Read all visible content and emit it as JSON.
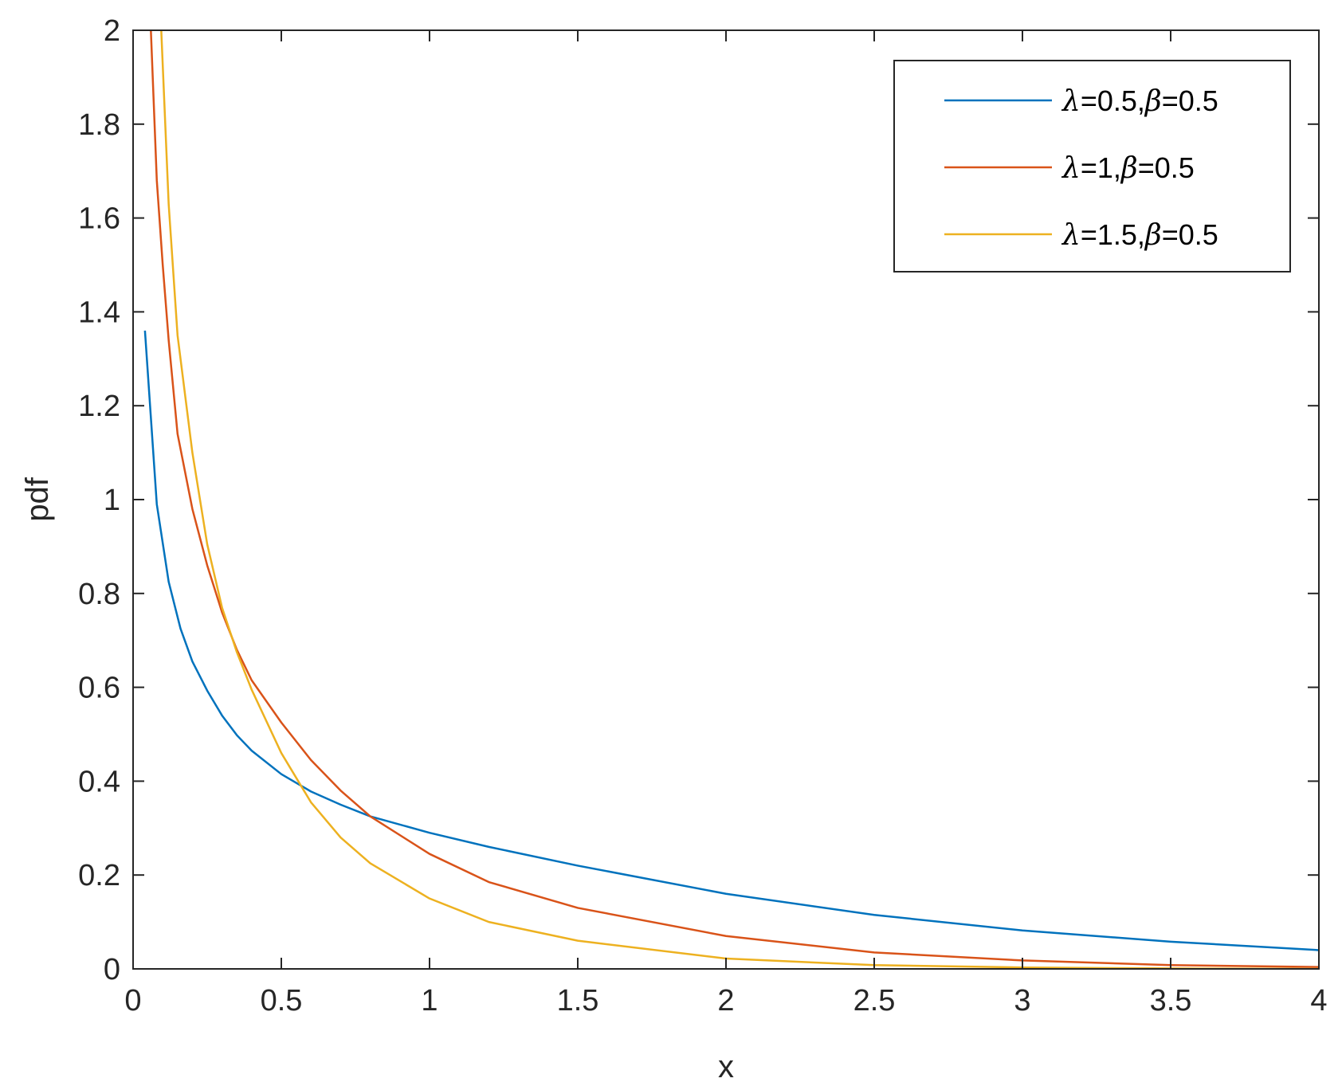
{
  "chart_data": {
    "type": "line",
    "title": "",
    "xlabel": "x",
    "ylabel": "pdf",
    "xlim": [
      0,
      4
    ],
    "ylim": [
      0,
      2
    ],
    "x_ticks": [
      0,
      0.5,
      1,
      1.5,
      2,
      2.5,
      3,
      3.5,
      4
    ],
    "x_tick_labels": [
      "0",
      "0.5",
      "1",
      "1.5",
      "2",
      "2.5",
      "3",
      "3.5",
      "4"
    ],
    "y_ticks": [
      0,
      0.2,
      0.4,
      0.6,
      0.8,
      1,
      1.2,
      1.4,
      1.6,
      1.8,
      2
    ],
    "y_tick_labels": [
      "0",
      "0.2",
      "0.4",
      "0.6",
      "0.8",
      "1",
      "1.2",
      "1.4",
      "1.6",
      "1.8",
      "2"
    ],
    "grid": false,
    "legend_position": "top-right",
    "series": [
      {
        "name": "λ=0.5,β=0.5",
        "legend": {
          "lambda_symbol": "λ",
          "lambda_value": "=0.5,",
          "beta_symbol": "β",
          "beta_value": "=0.5"
        },
        "color": "#0072BD",
        "x": [
          0.04,
          0.08,
          0.12,
          0.16,
          0.2,
          0.25,
          0.3,
          0.35,
          0.4,
          0.5,
          0.6,
          0.7,
          0.8,
          1.0,
          1.2,
          1.5,
          2.0,
          2.5,
          3.0,
          3.5,
          4.0
        ],
        "y": [
          1.36,
          0.99,
          0.825,
          0.725,
          0.655,
          0.593,
          0.54,
          0.498,
          0.465,
          0.415,
          0.378,
          0.35,
          0.325,
          0.29,
          0.26,
          0.22,
          0.16,
          0.115,
          0.082,
          0.058,
          0.04
        ]
      },
      {
        "name": "λ=1,β=0.5",
        "legend": {
          "lambda_symbol": "λ",
          "lambda_value": "=1,",
          "beta_symbol": "β",
          "beta_value": "=0.5"
        },
        "color": "#D95319",
        "x": [
          0.06,
          0.08,
          0.1,
          0.12,
          0.15,
          0.2,
          0.25,
          0.3,
          0.35,
          0.4,
          0.5,
          0.6,
          0.7,
          0.8,
          1.0,
          1.2,
          1.5,
          2.0,
          2.5,
          3.0,
          3.5,
          4.0
        ],
        "y": [
          2.0,
          1.68,
          1.5,
          1.34,
          1.14,
          0.98,
          0.86,
          0.76,
          0.68,
          0.615,
          0.525,
          0.445,
          0.38,
          0.325,
          0.245,
          0.185,
          0.13,
          0.07,
          0.035,
          0.018,
          0.008,
          0.004
        ]
      },
      {
        "name": "λ=1.5,β=0.5",
        "legend": {
          "lambda_symbol": "λ",
          "lambda_value": "=1.5,",
          "beta_symbol": "β",
          "beta_value": "=0.5"
        },
        "color": "#EDB120",
        "x": [
          0.095,
          0.12,
          0.15,
          0.2,
          0.25,
          0.3,
          0.35,
          0.4,
          0.5,
          0.6,
          0.7,
          0.8,
          1.0,
          1.2,
          1.5,
          2.0,
          2.5,
          3.0,
          3.5,
          4.0
        ],
        "y": [
          2.0,
          1.63,
          1.35,
          1.1,
          0.905,
          0.77,
          0.675,
          0.595,
          0.46,
          0.355,
          0.28,
          0.225,
          0.15,
          0.1,
          0.06,
          0.022,
          0.008,
          0.003,
          0.001,
          0.0
        ]
      }
    ]
  }
}
